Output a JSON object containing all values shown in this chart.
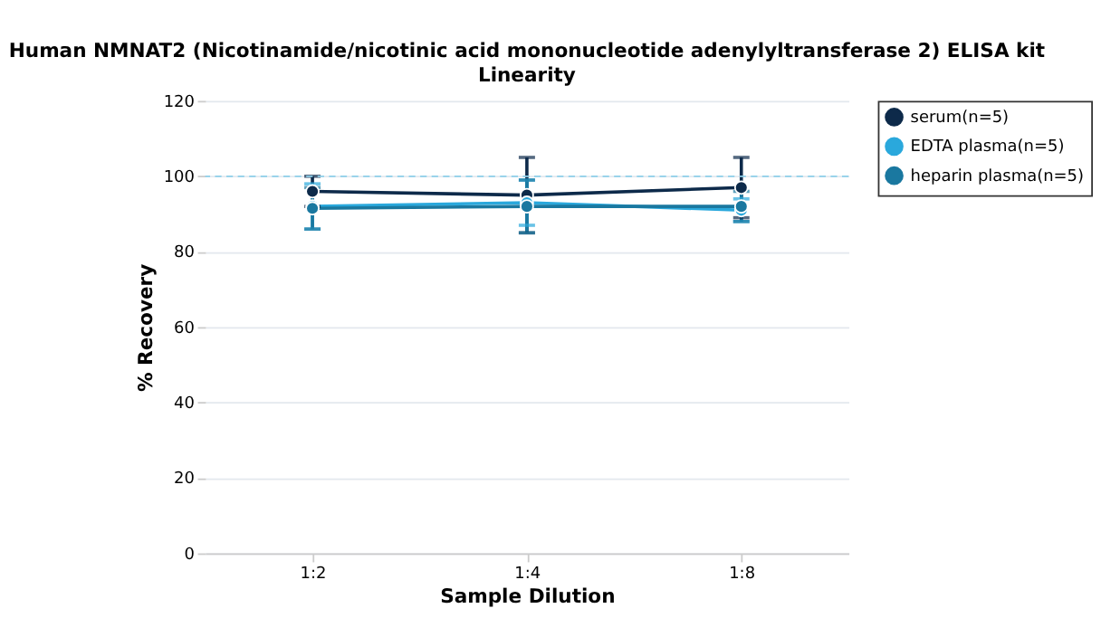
{
  "chart_data": {
    "type": "line",
    "title": "Human NMNAT2 (Nicotinamide/nicotinic acid mononucleotide adenylyltransferase 2) ELISA kit",
    "subtitle": "Linearity",
    "xlabel": "Sample Dilution",
    "ylabel": "% Recovery",
    "categories": [
      "1:2",
      "1:4",
      "1:8"
    ],
    "series": [
      {
        "name": "serum(n=5)",
        "color": "#0d2a4a",
        "values": [
          96,
          95,
          97
        ],
        "errors": [
          4,
          10,
          8
        ]
      },
      {
        "name": "EDTA plasma(n=5)",
        "color": "#2aa8dc",
        "values": [
          92,
          93,
          91
        ],
        "errors": [
          6,
          6,
          3
        ]
      },
      {
        "name": "heparin plasma(n=5)",
        "color": "#1a78a0",
        "values": [
          91.5,
          92,
          92
        ],
        "errors": [
          5.5,
          7,
          4
        ]
      }
    ],
    "ylim": [
      0,
      120
    ],
    "yticks": [
      0,
      20,
      40,
      60,
      80,
      100,
      120
    ],
    "ref_lines": [
      {
        "axis": "y",
        "value": 100,
        "color": "#8fd0ea",
        "line_style": "dashed"
      }
    ],
    "grid": "y",
    "legend": "top right",
    "marker": "circle",
    "line_style": "solid"
  }
}
